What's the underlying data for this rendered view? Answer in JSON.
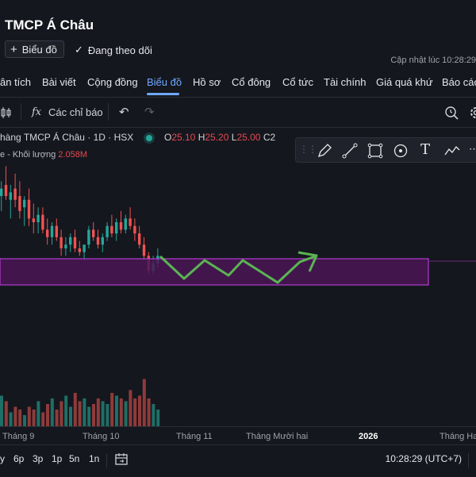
{
  "header": {
    "title": "TMCP Á Châu",
    "chart_button": "Biểu đồ",
    "follow_label": "Đang theo dõi",
    "updated": "Cập nhật lúc  10:28:29"
  },
  "nav": [
    "ân tích",
    "Bài viết",
    "Cộng đồng",
    "Biểu đồ",
    "Hồ sơ",
    "Cổ đông",
    "Cổ tức",
    "Tài chính",
    "Giá quá khứ",
    "Báo cáo"
  ],
  "toolbar": {
    "indicators": "Các chỉ báo",
    "fx": "fx"
  },
  "legend": {
    "symbol": "hàng TMCP Á Châu · 1D · HSX",
    "o_label": "O",
    "o": "25.10",
    "h_label": "H",
    "h": "25.20",
    "l_label": "L",
    "l": "25.00",
    "c_label": "C2",
    "volume_label": "e - Khối lượng",
    "volume": "2.058M"
  },
  "xaxis": [
    "Tháng 9",
    "Tháng 10",
    "Tháng 11",
    "Tháng Mười hai",
    "2026",
    "Tháng Hai"
  ],
  "ranges": [
    "y",
    "6p",
    "3p",
    "1p",
    "5n",
    "1n"
  ],
  "clock": "10:28:29 (UTC+7)",
  "colors": {
    "up": "#26a69a",
    "down": "#ef5350",
    "zone": "#8e2aa8",
    "arrow": "#5ab552",
    "accent": "#6fa8ff"
  },
  "candles": [
    {
      "o": 26.6,
      "h": 27.0,
      "l": 26.2,
      "c": 26.8
    },
    {
      "o": 26.9,
      "h": 27.4,
      "l": 26.5,
      "c": 26.6
    },
    {
      "o": 26.5,
      "h": 26.9,
      "l": 26.0,
      "c": 26.7
    },
    {
      "o": 26.8,
      "h": 27.2,
      "l": 26.3,
      "c": 26.5
    },
    {
      "o": 26.6,
      "h": 27.0,
      "l": 26.0,
      "c": 26.2
    },
    {
      "o": 26.3,
      "h": 26.6,
      "l": 25.8,
      "c": 26.5
    },
    {
      "o": 26.5,
      "h": 26.8,
      "l": 25.8,
      "c": 26.0
    },
    {
      "o": 26.0,
      "h": 26.4,
      "l": 25.6,
      "c": 25.9
    },
    {
      "o": 25.9,
      "h": 26.3,
      "l": 25.6,
      "c": 26.1
    },
    {
      "o": 26.1,
      "h": 26.3,
      "l": 25.6,
      "c": 25.7
    },
    {
      "o": 25.7,
      "h": 26.0,
      "l": 25.3,
      "c": 25.5
    },
    {
      "o": 25.5,
      "h": 25.9,
      "l": 25.3,
      "c": 25.8
    },
    {
      "o": 25.8,
      "h": 26.0,
      "l": 25.4,
      "c": 25.5
    },
    {
      "o": 25.5,
      "h": 25.7,
      "l": 25.0,
      "c": 25.2
    },
    {
      "o": 25.2,
      "h": 25.5,
      "l": 25.0,
      "c": 25.3
    },
    {
      "o": 25.3,
      "h": 25.6,
      "l": 25.1,
      "c": 25.5
    },
    {
      "o": 25.5,
      "h": 25.7,
      "l": 25.1,
      "c": 25.2
    },
    {
      "o": 25.2,
      "h": 25.4,
      "l": 25.0,
      "c": 25.1
    },
    {
      "o": 25.1,
      "h": 25.3,
      "l": 24.9,
      "c": 25.3
    },
    {
      "o": 25.3,
      "h": 25.8,
      "l": 25.2,
      "c": 25.7
    },
    {
      "o": 25.7,
      "h": 25.9,
      "l": 25.4,
      "c": 25.5
    },
    {
      "o": 25.5,
      "h": 25.7,
      "l": 25.2,
      "c": 25.3
    },
    {
      "o": 25.3,
      "h": 25.6,
      "l": 25.1,
      "c": 25.5
    },
    {
      "o": 25.5,
      "h": 25.9,
      "l": 25.4,
      "c": 25.8
    },
    {
      "o": 25.8,
      "h": 26.1,
      "l": 25.5,
      "c": 25.6
    },
    {
      "o": 25.6,
      "h": 26.0,
      "l": 25.4,
      "c": 25.9
    },
    {
      "o": 25.9,
      "h": 26.2,
      "l": 25.6,
      "c": 25.7
    },
    {
      "o": 25.7,
      "h": 26.1,
      "l": 25.6,
      "c": 26.0
    },
    {
      "o": 26.0,
      "h": 26.3,
      "l": 25.7,
      "c": 25.8
    },
    {
      "o": 25.8,
      "h": 26.0,
      "l": 25.4,
      "c": 25.6
    },
    {
      "o": 25.6,
      "h": 25.8,
      "l": 25.2,
      "c": 25.3
    },
    {
      "o": 25.3,
      "h": 25.5,
      "l": 24.9,
      "c": 25.0
    },
    {
      "o": 25.0,
      "h": 25.1,
      "l": 24.5,
      "c": 24.6
    },
    {
      "o": 24.6,
      "h": 25.0,
      "l": 24.5,
      "c": 24.8
    },
    {
      "o": 24.8,
      "h": 25.2,
      "l": 24.7,
      "c": 25.0
    }
  ],
  "volumes": [
    0.55,
    0.45,
    0.25,
    0.35,
    0.3,
    0.2,
    0.35,
    0.3,
    0.45,
    0.25,
    0.4,
    0.5,
    0.3,
    0.45,
    0.55,
    0.35,
    0.6,
    0.45,
    0.5,
    0.35,
    0.4,
    0.5,
    0.45,
    0.4,
    0.6,
    0.55,
    0.5,
    0.45,
    0.65,
    0.5,
    0.55,
    0.85,
    0.5,
    0.4,
    0.3
  ]
}
